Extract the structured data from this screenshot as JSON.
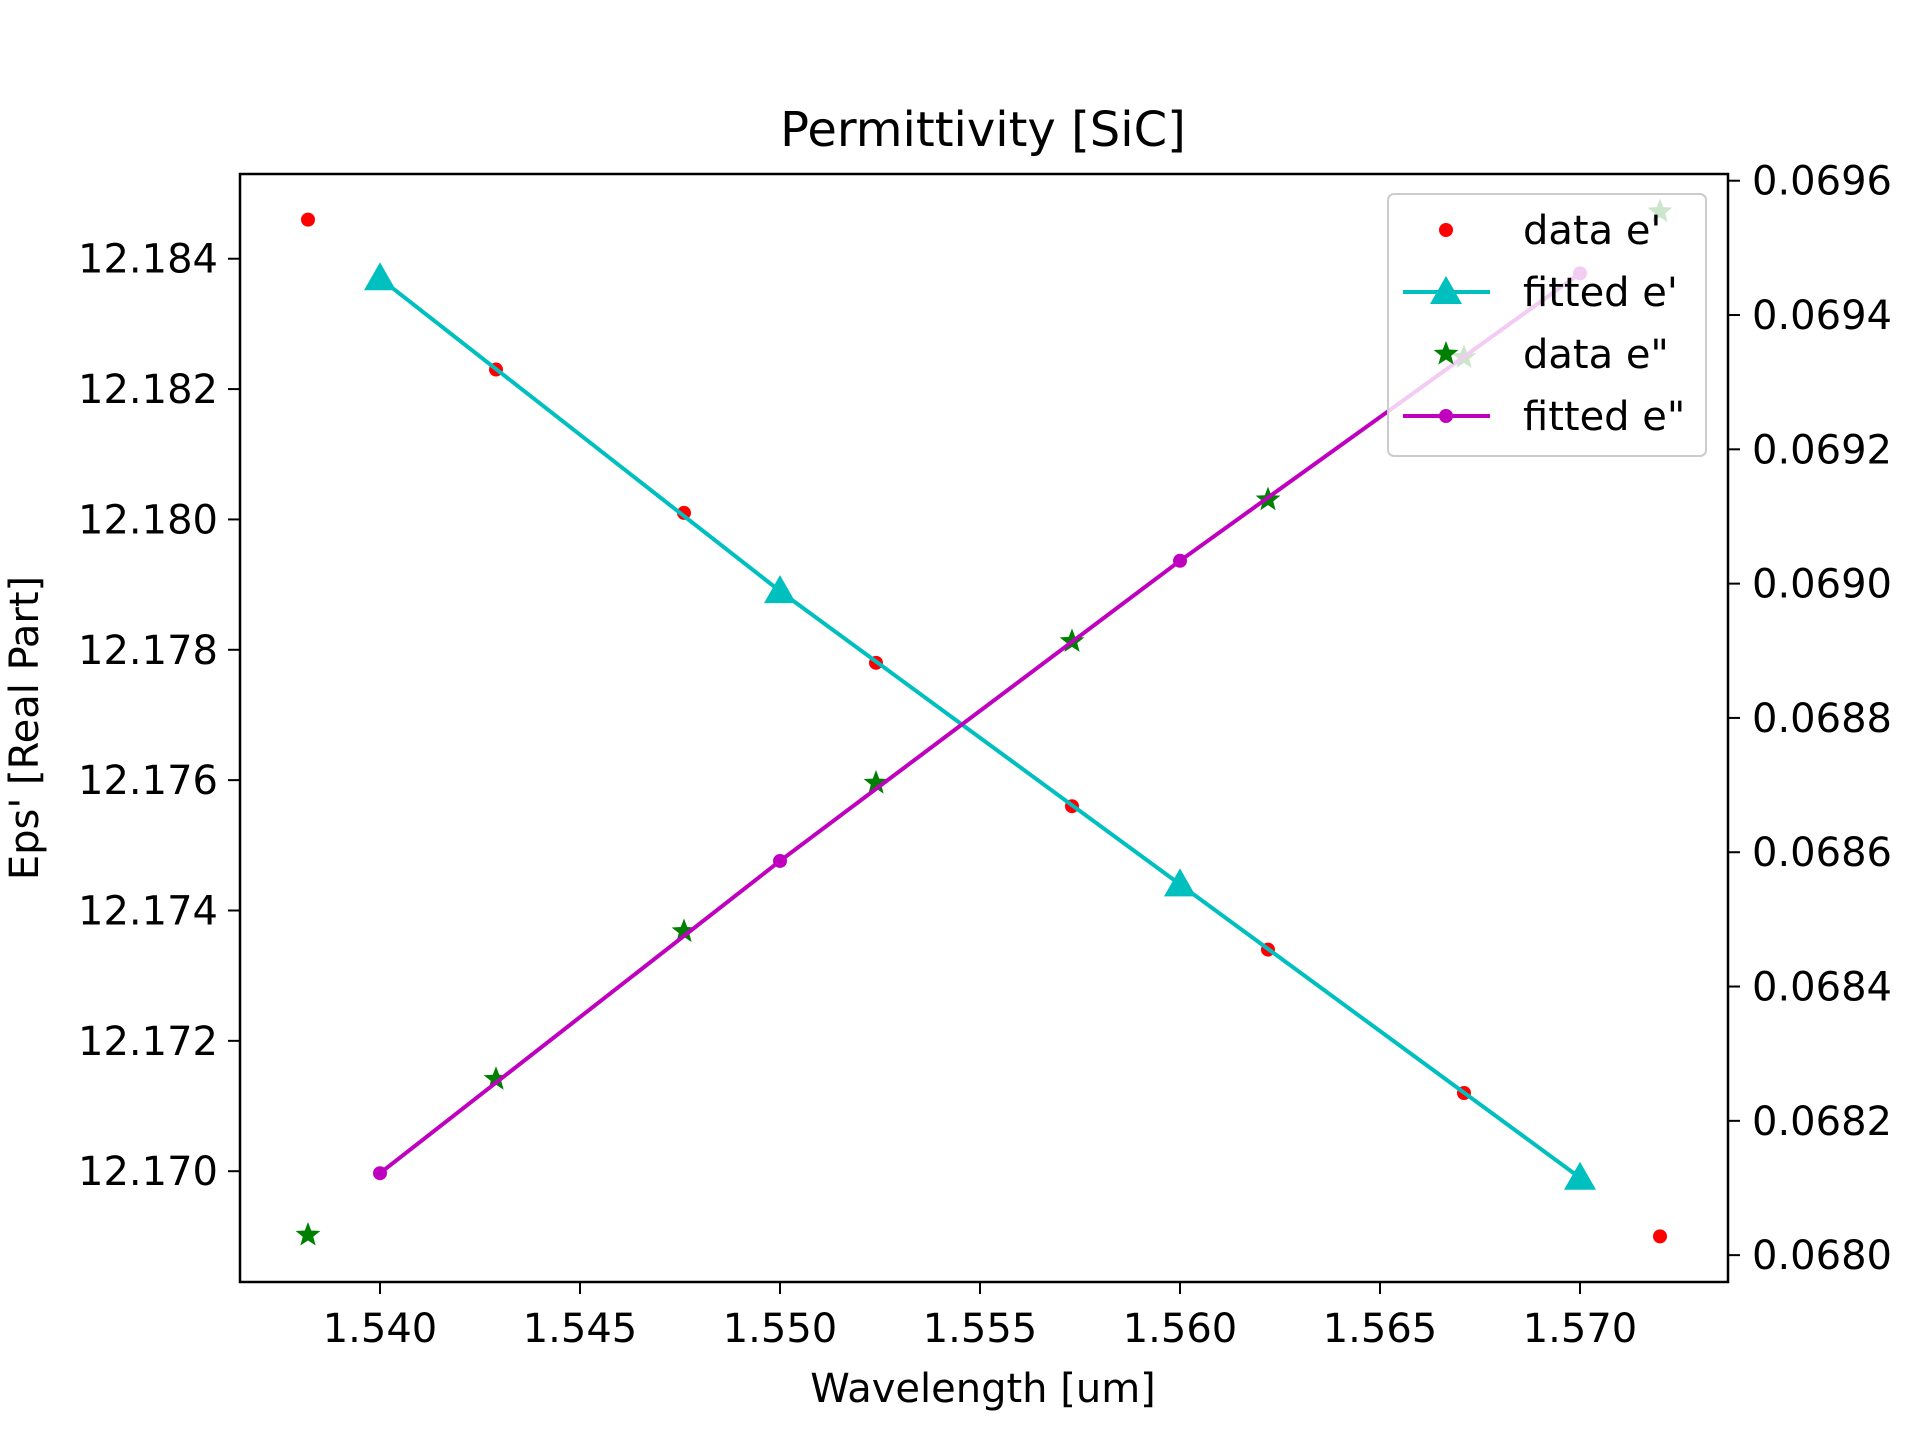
{
  "chart_data": {
    "type": "line",
    "title": "Permittivity [SiC]",
    "xlabel": "Wavelength [um]",
    "ylabel_left": "Eps' [Real Part]",
    "ylabel_right": "",
    "xlim": [
      1.5365,
      1.5737
    ],
    "ylim_left": [
      12.1683,
      12.1853
    ],
    "ylim_right": [
      0.06796,
      0.06961
    ],
    "x_ticks": [
      "1.540",
      "1.545",
      "1.550",
      "1.555",
      "1.560",
      "1.565",
      "1.570"
    ],
    "y_left_ticks": [
      "12.170",
      "12.172",
      "12.174",
      "12.176",
      "12.178",
      "12.180",
      "12.182",
      "12.184"
    ],
    "y_right_ticks": [
      "0.0680",
      "0.0682",
      "0.0684",
      "0.0686",
      "0.0688",
      "0.0690",
      "0.0692",
      "0.0694",
      "0.0696"
    ],
    "legend_position": "top-right",
    "series": [
      {
        "name": "data e'",
        "axis": "left",
        "style": "scatter",
        "color": "#ff0000",
        "marker": "dot",
        "x": [
          1.5382,
          1.5429,
          1.5476,
          1.5524,
          1.5573,
          1.5622,
          1.5671,
          1.572
        ],
        "y": [
          12.1846,
          12.1823,
          12.1801,
          12.1778,
          12.1756,
          12.1734,
          12.1712,
          12.169
        ]
      },
      {
        "name": "fitted e'",
        "axis": "left",
        "style": "line",
        "color": "#00bfbf",
        "marker": "triangle",
        "x": [
          1.54,
          1.55,
          1.56,
          1.57
        ],
        "y": [
          12.1837,
          12.1789,
          12.1744,
          12.1699
        ]
      },
      {
        "name": "data e\"",
        "axis": "right",
        "style": "scatter",
        "color": "#008000",
        "marker": "star",
        "x": [
          1.5382,
          1.5429,
          1.5476,
          1.5524,
          1.5573,
          1.5622,
          1.5671,
          1.572
        ],
        "y": [
          0.06803,
          0.068262,
          0.068482,
          0.068703,
          0.068914,
          0.069125,
          0.069337,
          0.069554
        ]
      },
      {
        "name": "fitted e\"",
        "axis": "right",
        "style": "line",
        "color": "#bf00bf",
        "marker": "dot",
        "x": [
          1.54,
          1.55,
          1.56,
          1.57
        ],
        "y": [
          0.068122,
          0.068587,
          0.069034,
          0.069462
        ]
      }
    ]
  }
}
